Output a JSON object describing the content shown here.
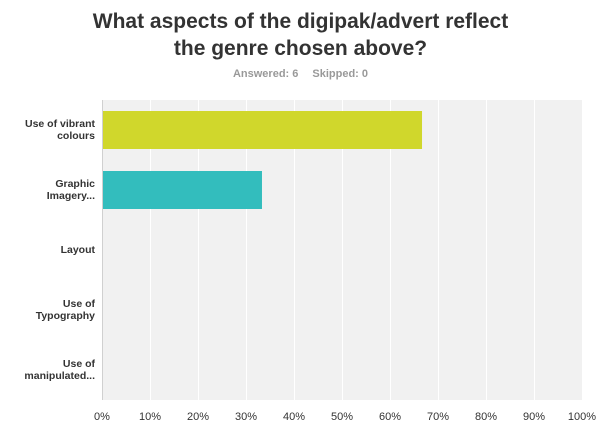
{
  "title_line1": "What aspects of the digipak/advert reflect",
  "title_line2": "the genre chosen above?",
  "answered_label": "Answered: 6",
  "skipped_label": "Skipped: 0",
  "chart_data": {
    "type": "bar",
    "orientation": "horizontal",
    "categories": [
      "Use of vibrant\ncolours",
      "Graphic\nImagery...",
      "Layout",
      "Use of\nTypography",
      "Use of\nmanipulated..."
    ],
    "values": [
      66.67,
      33.33,
      0,
      0,
      0
    ],
    "colors": [
      "#d0d72c",
      "#33bdbd",
      "#f06f55",
      "#8c5fb0",
      "#5aa0d6"
    ],
    "xlim": [
      0,
      100
    ],
    "xticks": [
      "0%",
      "10%",
      "20%",
      "30%",
      "40%",
      "50%",
      "60%",
      "70%",
      "80%",
      "90%",
      "100%"
    ],
    "xlabel": "",
    "ylabel": "",
    "grid": true
  }
}
